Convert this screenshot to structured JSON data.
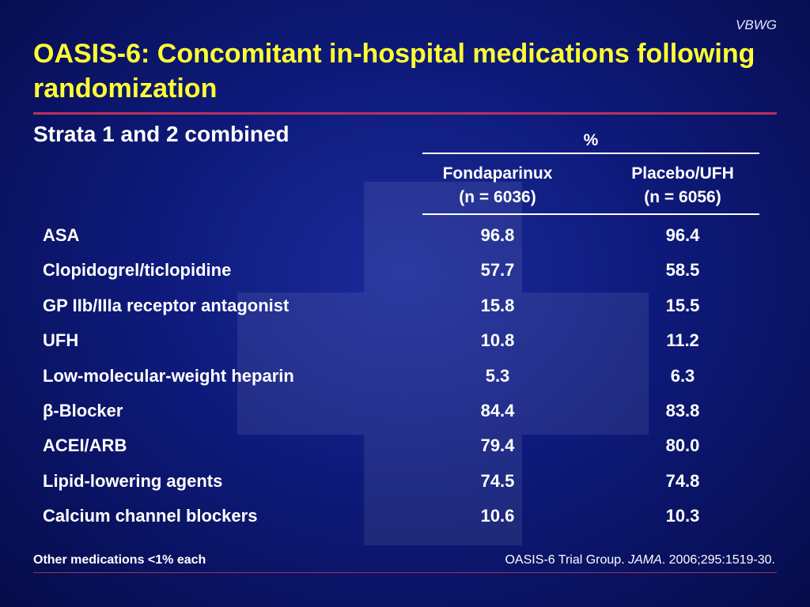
{
  "brand": "VBWG",
  "title": "OASIS-6: Concomitant in-hospital medications following randomization",
  "subtitle": "Strata 1 and 2 combined",
  "table": {
    "group_header": "%",
    "columns": [
      {
        "name": "Fondaparinux",
        "n": "(n = 6036)"
      },
      {
        "name": "Placebo/UFH",
        "n": "(n = 6056)"
      }
    ],
    "rows": [
      {
        "label": "ASA",
        "fondaparinux": "96.8",
        "placebo_ufh": "96.4"
      },
      {
        "label": "Clopidogrel/ticlopidine",
        "fondaparinux": "57.7",
        "placebo_ufh": "58.5"
      },
      {
        "label": "GP IIb/IIIa receptor antagonist",
        "fondaparinux": "15.8",
        "placebo_ufh": "15.5"
      },
      {
        "label": "UFH",
        "fondaparinux": "10.8",
        "placebo_ufh": "11.2"
      },
      {
        "label": "Low-molecular-weight heparin",
        "fondaparinux": "5.3",
        "placebo_ufh": "6.3"
      },
      {
        "label": "β-Blocker",
        "fondaparinux": "84.4",
        "placebo_ufh": "83.8"
      },
      {
        "label": "ACEI/ARB",
        "fondaparinux": "79.4",
        "placebo_ufh": "80.0"
      },
      {
        "label": "Lipid-lowering agents",
        "fondaparinux": "74.5",
        "placebo_ufh": "74.8"
      },
      {
        "label": "Calcium channel blockers",
        "fondaparinux": "10.6",
        "placebo_ufh": "10.3"
      }
    ]
  },
  "footer": {
    "note": "Other medications <1% each",
    "citation_prefix": "OASIS-6 Trial Group. ",
    "citation_journal": "JAMA",
    "citation_suffix": ". 2006;295:1519-30."
  },
  "colors": {
    "title": "#ffff33",
    "rule_accent": "#b8325a",
    "background": "#0e1a7a"
  }
}
